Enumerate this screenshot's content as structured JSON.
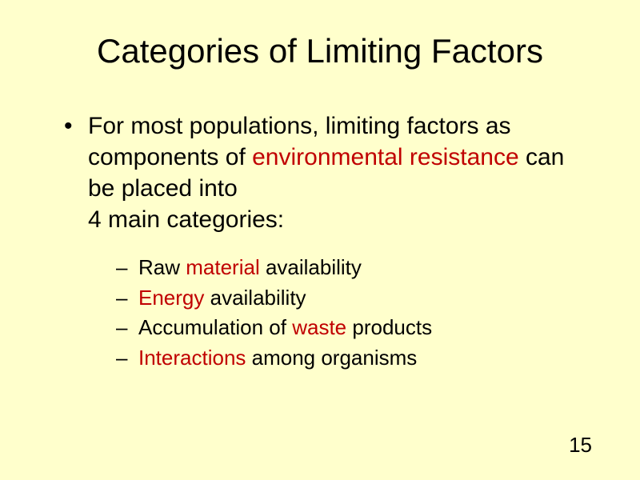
{
  "background_color": "#ffffcc",
  "text_color": "#000000",
  "highlight_color": "#c00000",
  "title_fontsize": 42,
  "body_fontsize": 30,
  "sub_fontsize": 26,
  "title": "Categories of Limiting Factors",
  "main_bullet": {
    "part1": "For most populations, limiting factors as components of ",
    "highlight1": "environmental resistance",
    "part2": " can be placed into",
    "part3": "4 main categories:"
  },
  "sub_bullets": [
    {
      "pre": "Raw ",
      "hl": "material",
      "post": " availability"
    },
    {
      "pre": "",
      "hl": "Energy",
      "post": " availability"
    },
    {
      "pre": "Accumulation of ",
      "hl": "waste",
      "post": " products"
    },
    {
      "pre": "",
      "hl": "Interactions",
      "post": " among organisms"
    }
  ],
  "page_number": "15"
}
